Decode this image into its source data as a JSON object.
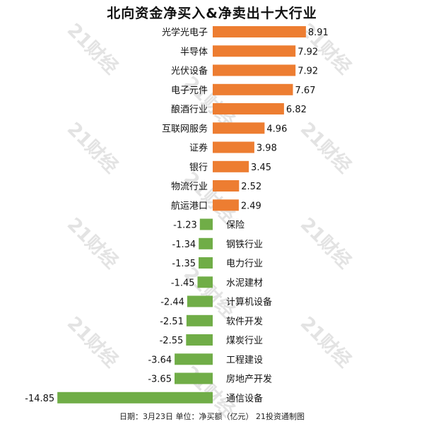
{
  "chart_data": {
    "type": "bar",
    "orientation": "horizontal",
    "title": "北向资金净买入&净卖出十大行业",
    "footer": "日期：3月23日 单位：净买额（亿元） 21投资通制图",
    "watermark": "21财经",
    "categories": [
      "光学光电子",
      "半导体",
      "光伏设备",
      "电子元件",
      "酿酒行业",
      "互联网服务",
      "证券",
      "银行",
      "物流行业",
      "航运港口",
      "保险",
      "钢铁行业",
      "电力行业",
      "水泥建材",
      "计算机设备",
      "软件开发",
      "煤炭行业",
      "工程建设",
      "房地产开发",
      "通信设备"
    ],
    "values": [
      8.91,
      7.92,
      7.92,
      7.67,
      6.82,
      4.96,
      3.98,
      3.45,
      2.52,
      2.49,
      -1.23,
      -1.34,
      -1.35,
      -1.45,
      -2.44,
      -2.51,
      -2.55,
      -3.64,
      -3.65,
      -14.85
    ],
    "value_labels": [
      "8.91",
      "7.92",
      "7.92",
      "7.67",
      "6.82",
      "4.96",
      "3.98",
      "3.45",
      "2.52",
      "2.49",
      "-1.23",
      "-1.34",
      "-1.35",
      "-1.45",
      "-2.44",
      "-2.51",
      "-2.55",
      "-3.64",
      "-3.65",
      "-14.85"
    ],
    "positive_color": "#ed7d31",
    "negative_color": "#70ad47",
    "grid": false,
    "legend": "none"
  }
}
